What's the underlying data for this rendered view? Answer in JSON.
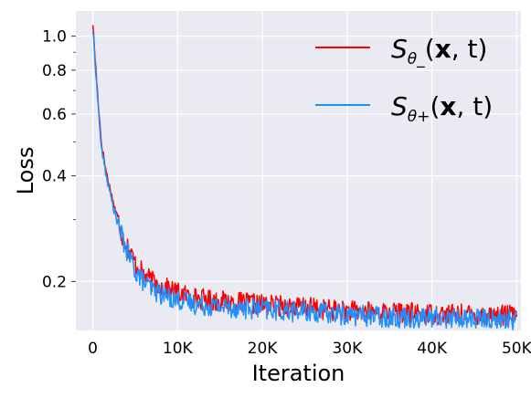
{
  "chart_data": {
    "type": "line",
    "xlabel": "Iteration",
    "ylabel": "Loss",
    "xlim": [
      -2000,
      50500
    ],
    "ylim": [
      0.145,
      1.18
    ],
    "yscale": "log",
    "grid": true,
    "background_color": "#eaeaf2",
    "legend_position": "top-right",
    "x_ticks": [
      {
        "value": 0,
        "label": "0"
      },
      {
        "value": 10000,
        "label": "10K"
      },
      {
        "value": 20000,
        "label": "20K"
      },
      {
        "value": 30000,
        "label": "30K"
      },
      {
        "value": 40000,
        "label": "40K"
      },
      {
        "value": 50000,
        "label": "50K"
      }
    ],
    "y_ticks": [
      {
        "value": 0.2,
        "label": "0.2"
      },
      {
        "value": 0.4,
        "label": "0.4"
      },
      {
        "value": 0.6,
        "label": "0.6"
      },
      {
        "value": 0.8,
        "label": "0.8"
      },
      {
        "value": 1.0,
        "label": "1.0"
      }
    ],
    "y_minor_ticks": [
      0.3,
      0.5,
      0.7,
      0.9
    ],
    "series": [
      {
        "name_parts": {
          "subscript": "θ_",
          "bold": "x",
          "tail": ", t)"
        },
        "color": "#ff0000",
        "x": [
          0,
          200,
          500,
          1000,
          1500,
          2000,
          2500,
          3000,
          3500,
          4000,
          4500,
          5000,
          6000,
          7000,
          8000,
          9000,
          10000,
          12000,
          15000,
          20000,
          25000,
          30000,
          35000,
          40000,
          45000,
          50000
        ],
        "y": [
          1.09,
          0.92,
          0.72,
          0.5,
          0.42,
          0.37,
          0.33,
          0.3,
          0.27,
          0.255,
          0.24,
          0.225,
          0.21,
          0.2,
          0.195,
          0.19,
          0.186,
          0.18,
          0.176,
          0.172,
          0.169,
          0.165,
          0.163,
          0.162,
          0.161,
          0.16
        ]
      },
      {
        "name_parts": {
          "subscript": "θ+",
          "bold": "x",
          "tail": ", t)"
        },
        "color": "#1e90ff",
        "x": [
          0,
          200,
          500,
          1000,
          1500,
          2000,
          2500,
          3000,
          3500,
          4000,
          4500,
          5000,
          6000,
          7000,
          8000,
          9000,
          10000,
          12000,
          15000,
          20000,
          25000,
          30000,
          35000,
          40000,
          45000,
          50000
        ],
        "y": [
          1.04,
          0.9,
          0.7,
          0.48,
          0.41,
          0.36,
          0.32,
          0.29,
          0.265,
          0.245,
          0.23,
          0.215,
          0.2,
          0.19,
          0.185,
          0.181,
          0.178,
          0.173,
          0.17,
          0.167,
          0.164,
          0.161,
          0.159,
          0.158,
          0.157,
          0.156
        ]
      }
    ]
  }
}
